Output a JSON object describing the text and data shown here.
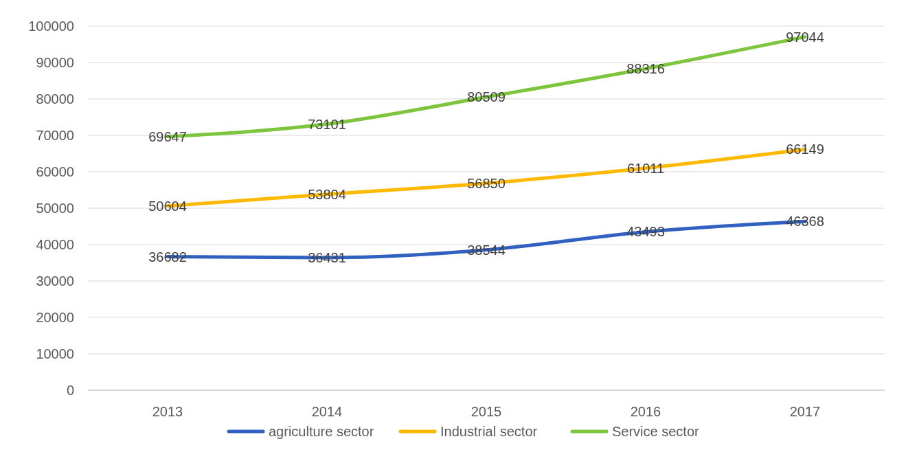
{
  "chart_data": {
    "type": "line",
    "categories": [
      "2013",
      "2014",
      "2015",
      "2016",
      "2017"
    ],
    "series": [
      {
        "name": "agriculture sector",
        "color": "#3061c0",
        "values": [
          36682,
          36431,
          38544,
          43493,
          46368
        ]
      },
      {
        "name": "Industrial sector",
        "color": "#ffb900",
        "values": [
          50604,
          53804,
          56850,
          61011,
          66149
        ]
      },
      {
        "name": "Service sector",
        "color": "#7dc53c",
        "values": [
          69647,
          73101,
          80509,
          88316,
          97044
        ]
      }
    ],
    "ylim": [
      0,
      100000
    ],
    "yticks": [
      0,
      10000,
      20000,
      30000,
      40000,
      50000,
      60000,
      70000,
      80000,
      90000,
      100000
    ],
    "grid": "y",
    "legend": "bottom",
    "data_labels": true
  }
}
